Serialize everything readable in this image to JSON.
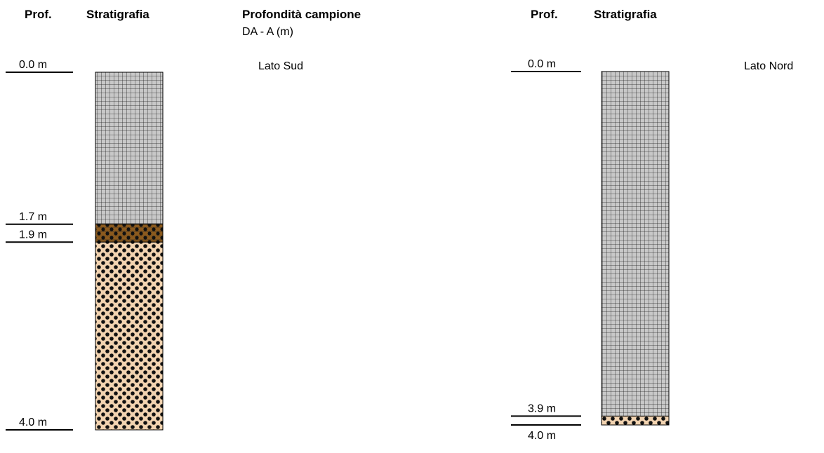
{
  "header": {
    "title": "Profondità campione",
    "subtitle": "DA - A (m)"
  },
  "columns": [
    {
      "prof": "Prof.",
      "strat": "Stratigrafia",
      "side": "Lato Sud",
      "depths": [
        {
          "value": 0.0,
          "label": "0.0 m"
        },
        {
          "value": 1.7,
          "label": "1.7 m"
        },
        {
          "value": 1.9,
          "label": "1.9 m"
        },
        {
          "value": 4.0,
          "label": "4.0 m"
        }
      ]
    },
    {
      "prof": "Prof.",
      "strat": "Stratigrafia",
      "side": "Lato Nord",
      "depths": [
        {
          "value": 0.0,
          "label": "0.0 m"
        },
        {
          "value": 3.9,
          "label": "3.9 m"
        },
        {
          "value": 4.0,
          "label": "4.0 m"
        }
      ]
    }
  ]
}
